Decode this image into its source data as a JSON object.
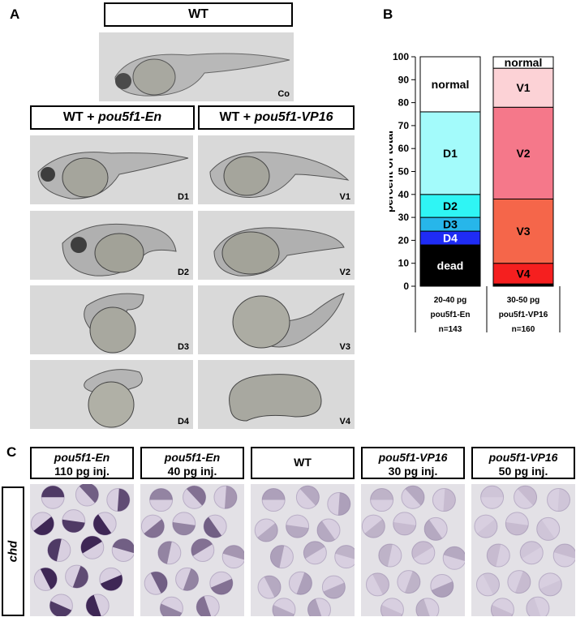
{
  "panels": {
    "a": "A",
    "b": "B",
    "c": "C"
  },
  "panel_a": {
    "wt_header": "WT",
    "control_tag": "Co",
    "en_header": {
      "prefix": "WT + ",
      "gene": "pou5f1-En"
    },
    "vp_header": {
      "prefix": "WT + ",
      "gene": "pou5f1-VP16"
    },
    "en_tags": [
      "D1",
      "D2",
      "D3",
      "D4"
    ],
    "vp_tags": [
      "V1",
      "V2",
      "V3",
      "V4"
    ]
  },
  "chart_data": {
    "type": "bar",
    "stacked": true,
    "ylabel": "percent of total",
    "ylim": [
      0,
      100
    ],
    "yticks": [
      0,
      10,
      20,
      30,
      40,
      50,
      60,
      70,
      80,
      90,
      100
    ],
    "bars": [
      {
        "dose": "20-40 pg",
        "construct": "pou5f1-En",
        "n": "n=143",
        "segments": [
          {
            "label": "dead",
            "value": 18,
            "color": "#000000",
            "text_color": "#ffffff"
          },
          {
            "label": "D4",
            "value": 6,
            "color": "#1f2cf5",
            "text_color": "#ffffff"
          },
          {
            "label": "D3",
            "value": 6,
            "color": "#27b6ea",
            "text_color": "#000000"
          },
          {
            "label": "D2",
            "value": 10,
            "color": "#2ff5f4",
            "text_color": "#000000"
          },
          {
            "label": "D1",
            "value": 36,
            "color": "#a3fbfb",
            "text_color": "#000000"
          },
          {
            "label": "normal",
            "value": 24,
            "color": "#ffffff",
            "text_color": "#000000"
          }
        ]
      },
      {
        "dose": "30-50 pg",
        "construct": "pou5f1-VP16",
        "n": "n=160",
        "segments": [
          {
            "label": "",
            "value": 1,
            "color": "#000000",
            "text_color": "#ffffff"
          },
          {
            "label": "V4",
            "value": 9,
            "color": "#f51f1f",
            "text_color": "#000000"
          },
          {
            "label": "V3",
            "value": 28,
            "color": "#f5664a",
            "text_color": "#000000"
          },
          {
            "label": "V2",
            "value": 40,
            "color": "#f5788a",
            "text_color": "#000000"
          },
          {
            "label": "V1",
            "value": 17,
            "color": "#fcd2d6",
            "text_color": "#000000"
          },
          {
            "label": "normal",
            "value": 5,
            "color": "#ffffff",
            "text_color": "#000000"
          }
        ]
      }
    ]
  },
  "panel_c": {
    "row_label": "chd",
    "columns": [
      {
        "line1": "pou5f1-En",
        "line1_italic": true,
        "line2": "110 pg inj."
      },
      {
        "line1": "pou5f1-En",
        "line1_italic": true,
        "line2": "40 pg inj."
      },
      {
        "line1": "WT",
        "line1_italic": false,
        "line2": ""
      },
      {
        "line1": "pou5f1-VP16",
        "line1_italic": true,
        "line2": "30 pg inj."
      },
      {
        "line1": "pou5f1-VP16",
        "line1_italic": true,
        "line2": "50 pg inj."
      }
    ]
  }
}
